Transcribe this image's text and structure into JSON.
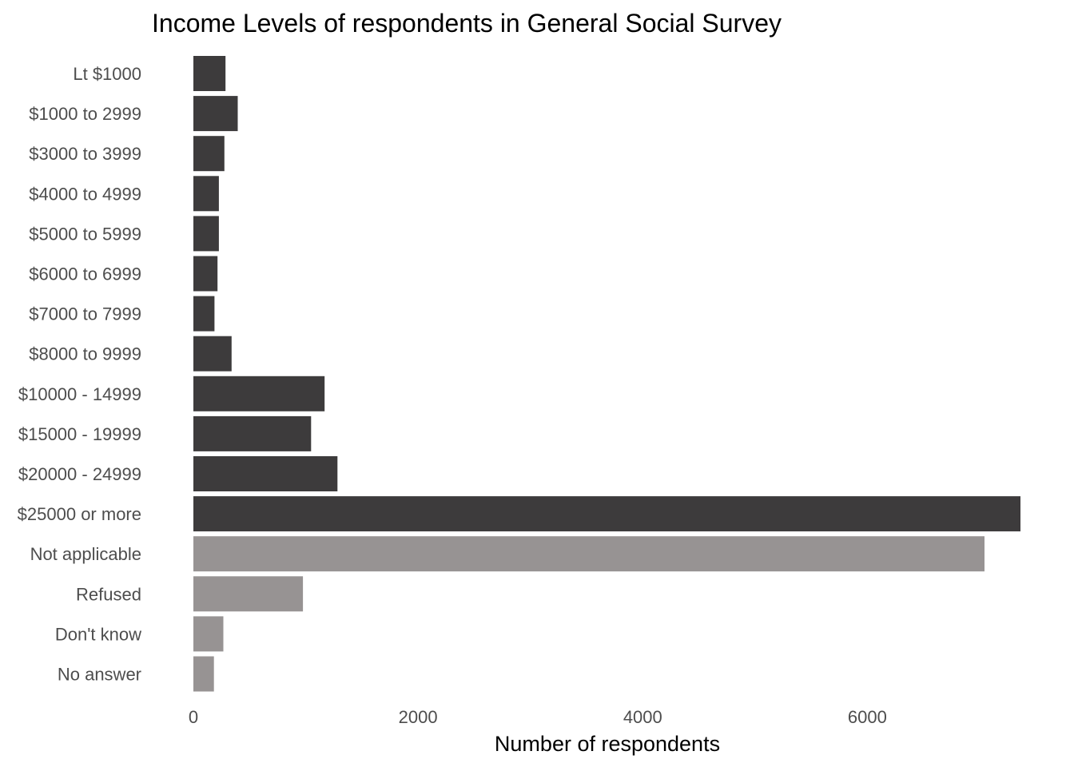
{
  "chart_data": {
    "type": "bar",
    "orientation": "horizontal",
    "title": "Income Levels of respondents in General Social Survey",
    "xlabel": "Number of respondents",
    "ylabel": "",
    "xlim": [
      0,
      7400
    ],
    "xticks": [
      0,
      2000,
      4000,
      6000
    ],
    "grid": false,
    "legend": "none",
    "categories": [
      "Lt $1000",
      "$1000 to 2999",
      "$3000 to 3999",
      "$4000 to 4999",
      "$5000 to 5999",
      "$6000 to 6999",
      "$7000 to 7999",
      "$8000 to 9999",
      "$10000 - 14999",
      "$15000 - 19999",
      "$20000 - 24999",
      "$25000 or more",
      "Not applicable",
      "Refused",
      "Don't know",
      "No answer"
    ],
    "values": [
      286,
      395,
      276,
      227,
      227,
      215,
      188,
      340,
      1168,
      1048,
      1283,
      7363,
      7043,
      975,
      267,
      183
    ],
    "colors": {
      "dark": "#3d3b3c",
      "light": "#979393"
    },
    "bar_color_groups": [
      "dark",
      "dark",
      "dark",
      "dark",
      "dark",
      "dark",
      "dark",
      "dark",
      "dark",
      "dark",
      "dark",
      "dark",
      "light",
      "light",
      "light",
      "light"
    ]
  }
}
